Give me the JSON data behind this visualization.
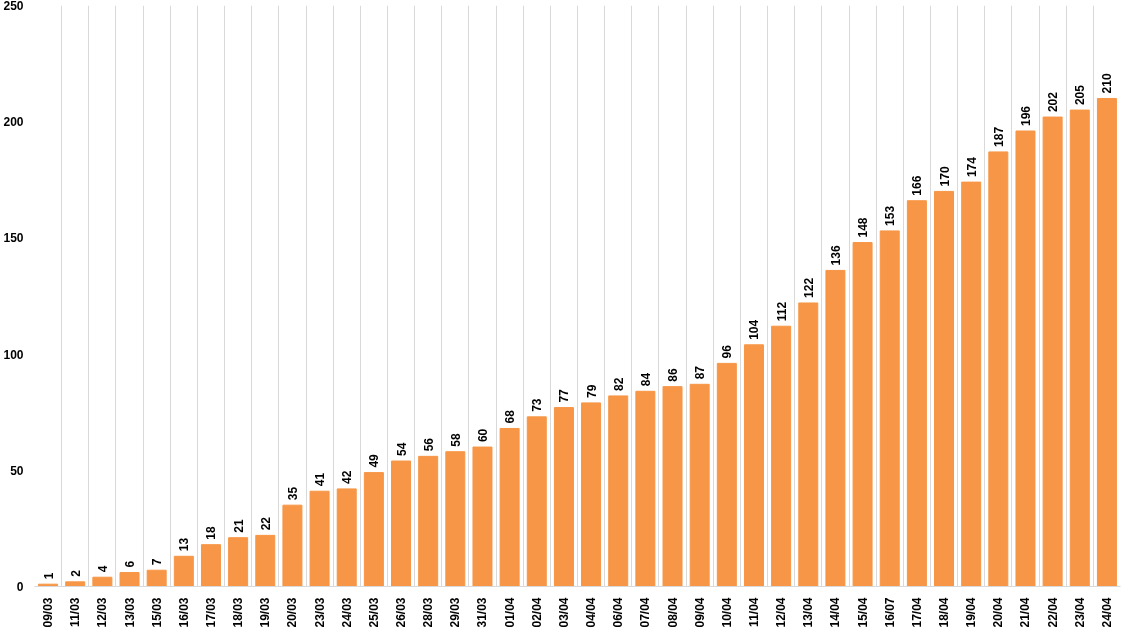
{
  "chart_data": {
    "type": "bar",
    "categories": [
      "09/03",
      "11/03",
      "12/03",
      "13/03",
      "15/03",
      "16/03",
      "17/03",
      "18/03",
      "19/03",
      "20/03",
      "23/03",
      "24/03",
      "25/03",
      "26/03",
      "28/03",
      "29/03",
      "31/03",
      "01/04",
      "02/04",
      "03/04",
      "04/04",
      "06/04",
      "07/04",
      "08/04",
      "09/04",
      "10/04",
      "11/04",
      "12/04",
      "13/04",
      "14/04",
      "15/04",
      "16/07",
      "17/04",
      "18/04",
      "19/04",
      "20/04",
      "21/04",
      "22/04",
      "23/04",
      "24/04"
    ],
    "values": [
      1,
      2,
      4,
      6,
      7,
      13,
      18,
      21,
      22,
      35,
      41,
      42,
      49,
      54,
      56,
      58,
      60,
      68,
      73,
      77,
      79,
      82,
      84,
      86,
      87,
      96,
      104,
      112,
      122,
      136,
      148,
      153,
      166,
      170,
      174,
      187,
      196,
      202,
      205,
      210
    ],
    "color": "#f79646",
    "ylim": [
      0,
      250
    ],
    "yticks": [
      0,
      50,
      100,
      150,
      200,
      250
    ],
    "grid": "x",
    "data_labels": true
  }
}
